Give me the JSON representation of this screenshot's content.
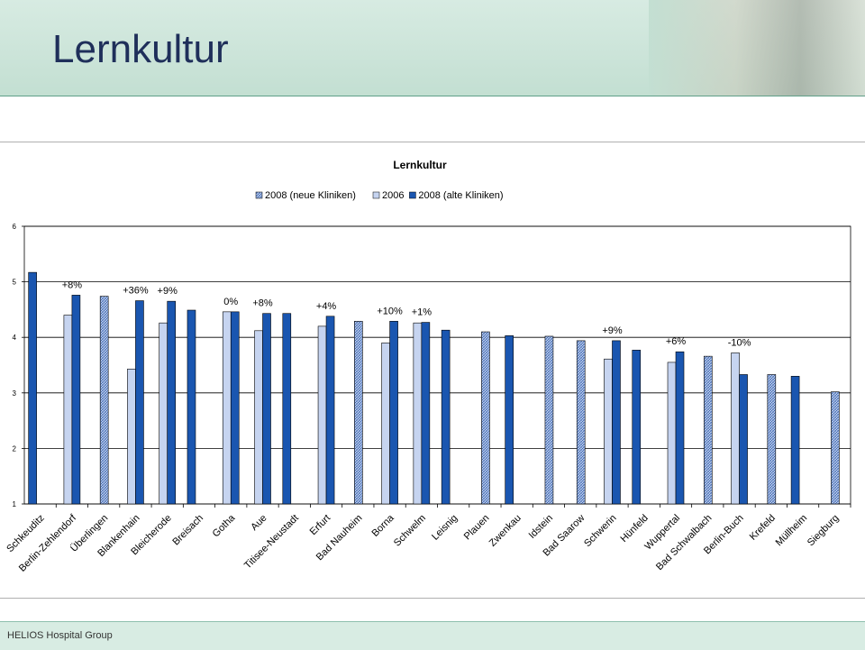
{
  "slide": {
    "title": "Lernkultur",
    "footer": "HELIOS Hospital Group"
  },
  "colors": {
    "neu": "#9fb7e0",
    "y2006": "#c6d4f0",
    "alt": "#1a56b0",
    "header_bg": "#c3dfd2"
  },
  "chart_data": {
    "type": "bar",
    "title": "Lernkultur",
    "ylim": [
      1,
      6
    ],
    "yticks": [
      "1",
      "2",
      "3",
      "4",
      "5",
      "6"
    ],
    "grid": true,
    "legend_position": "top",
    "series": [
      {
        "name": "2008 (neue Kliniken)",
        "key": "neu"
      },
      {
        "name": "2006",
        "key": "y2006"
      },
      {
        "name": "2008 (alte Kliniken)",
        "key": "alt"
      }
    ],
    "categories": [
      {
        "label": "Schkeuditz",
        "y2006": null,
        "alt": 5.17,
        "neu": null,
        "annotation": ""
      },
      {
        "label": "Berlin-Zehlendorf",
        "y2006": 4.4,
        "alt": 4.76,
        "neu": null,
        "annotation": "+8%"
      },
      {
        "label": "Überlingen",
        "y2006": null,
        "alt": null,
        "neu": 4.74,
        "annotation": ""
      },
      {
        "label": "Blankenhain",
        "y2006": 3.43,
        "alt": 4.66,
        "neu": null,
        "annotation": "+36%"
      },
      {
        "label": "Bleicherode",
        "y2006": 4.26,
        "alt": 4.65,
        "neu": null,
        "annotation": "+9%"
      },
      {
        "label": "Breisach",
        "y2006": null,
        "alt": 4.49,
        "neu": null,
        "annotation": ""
      },
      {
        "label": "Gotha",
        "y2006": 4.46,
        "alt": 4.46,
        "neu": null,
        "annotation": "0%"
      },
      {
        "label": "Aue",
        "y2006": 4.12,
        "alt": 4.43,
        "neu": null,
        "annotation": "+8%"
      },
      {
        "label": "Titisee-Neustadt",
        "y2006": null,
        "alt": 4.43,
        "neu": null,
        "annotation": ""
      },
      {
        "label": "Erfurt",
        "y2006": 4.2,
        "alt": 4.38,
        "neu": null,
        "annotation": "+4%"
      },
      {
        "label": "Bad Nauheim",
        "y2006": null,
        "alt": null,
        "neu": 4.29,
        "annotation": ""
      },
      {
        "label": "Borna",
        "y2006": 3.9,
        "alt": 4.29,
        "neu": null,
        "annotation": "+10%"
      },
      {
        "label": "Schwelm",
        "y2006": 4.26,
        "alt": 4.27,
        "neu": null,
        "annotation": "+1%"
      },
      {
        "label": "Leisnig",
        "y2006": null,
        "alt": 4.13,
        "neu": null,
        "annotation": ""
      },
      {
        "label": "Plauen",
        "y2006": null,
        "alt": null,
        "neu": 4.1,
        "annotation": ""
      },
      {
        "label": "Zwenkau",
        "y2006": null,
        "alt": 4.03,
        "neu": null,
        "annotation": ""
      },
      {
        "label": "Idstein",
        "y2006": null,
        "alt": null,
        "neu": 4.02,
        "annotation": ""
      },
      {
        "label": "Bad Saarow",
        "y2006": null,
        "alt": null,
        "neu": 3.94,
        "annotation": ""
      },
      {
        "label": "Schwerin",
        "y2006": 3.61,
        "alt": 3.94,
        "neu": null,
        "annotation": "+9%"
      },
      {
        "label": "Hünfeld",
        "y2006": null,
        "alt": 3.77,
        "neu": null,
        "annotation": ""
      },
      {
        "label": "Wuppertal",
        "y2006": 3.55,
        "alt": 3.74,
        "neu": null,
        "annotation": "+6%"
      },
      {
        "label": "Bad Schwalbach",
        "y2006": null,
        "alt": null,
        "neu": 3.66,
        "annotation": ""
      },
      {
        "label": "Berlin-Buch",
        "y2006": 3.72,
        "alt": 3.33,
        "neu": null,
        "annotation": "-10%"
      },
      {
        "label": "Krefeld",
        "y2006": null,
        "alt": null,
        "neu": 3.33,
        "annotation": ""
      },
      {
        "label": "Müllheim",
        "y2006": null,
        "alt": 3.3,
        "neu": null,
        "annotation": ""
      },
      {
        "label": "Siegburg",
        "y2006": null,
        "alt": null,
        "neu": 3.02,
        "annotation": ""
      }
    ]
  }
}
